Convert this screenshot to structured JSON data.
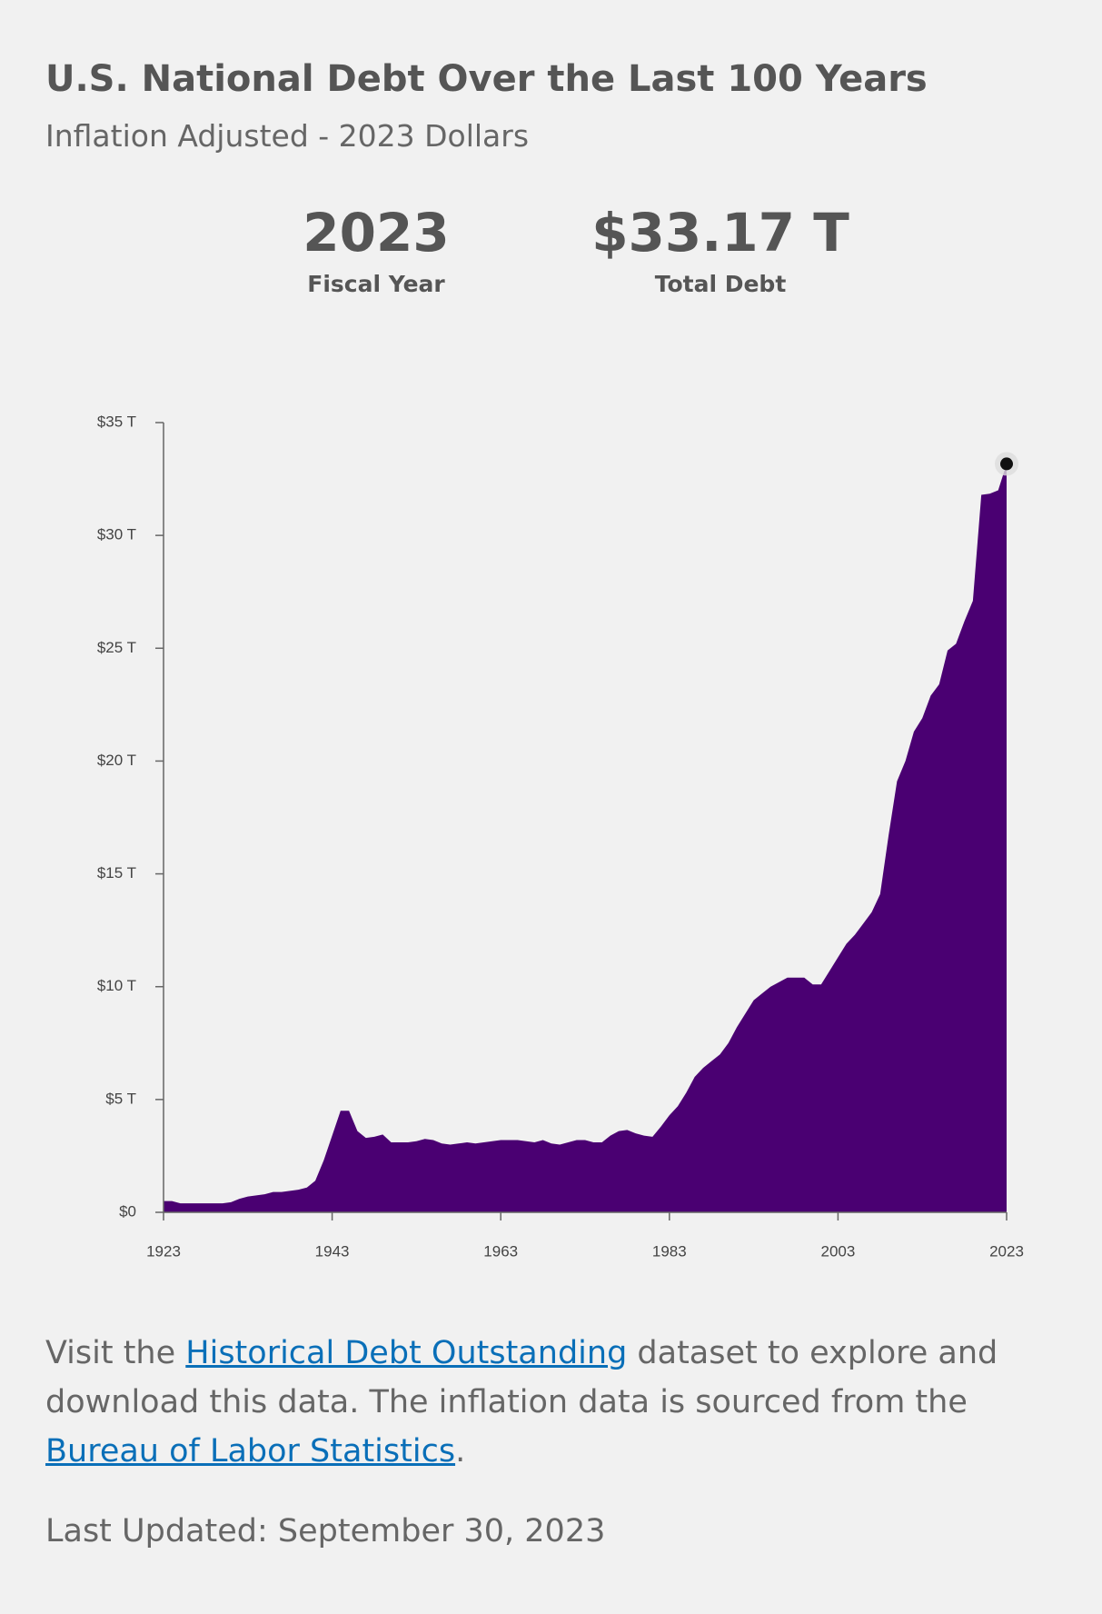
{
  "header": {
    "title": "U.S. National Debt Over the Last 100 Years",
    "subtitle": "Inflation Adjusted - 2023 Dollars"
  },
  "stats": [
    {
      "value": "2023",
      "label": "Fiscal Year"
    },
    {
      "value": "$33.17 T",
      "label": "Total Debt"
    }
  ],
  "chart_data": {
    "type": "area",
    "color": "#4a0072",
    "x": [
      1923,
      1924,
      1925,
      1926,
      1927,
      1928,
      1929,
      1930,
      1931,
      1932,
      1933,
      1934,
      1935,
      1936,
      1937,
      1938,
      1939,
      1940,
      1941,
      1942,
      1943,
      1944,
      1945,
      1946,
      1947,
      1948,
      1949,
      1950,
      1951,
      1952,
      1953,
      1954,
      1955,
      1956,
      1957,
      1958,
      1959,
      1960,
      1961,
      1962,
      1963,
      1964,
      1965,
      1966,
      1967,
      1968,
      1969,
      1970,
      1971,
      1972,
      1973,
      1974,
      1975,
      1976,
      1977,
      1978,
      1979,
      1980,
      1981,
      1982,
      1983,
      1984,
      1985,
      1986,
      1987,
      1988,
      1989,
      1990,
      1991,
      1992,
      1993,
      1994,
      1995,
      1996,
      1997,
      1998,
      1999,
      2000,
      2001,
      2002,
      2003,
      2004,
      2005,
      2006,
      2007,
      2008,
      2009,
      2010,
      2011,
      2012,
      2013,
      2014,
      2015,
      2016,
      2017,
      2018,
      2019,
      2020,
      2021,
      2022,
      2023
    ],
    "values": [
      0.5,
      0.5,
      0.4,
      0.4,
      0.4,
      0.4,
      0.4,
      0.4,
      0.45,
      0.6,
      0.7,
      0.75,
      0.8,
      0.9,
      0.9,
      0.95,
      1.0,
      1.1,
      1.4,
      2.3,
      3.4,
      4.5,
      4.5,
      3.6,
      3.3,
      3.35,
      3.45,
      3.1,
      3.1,
      3.1,
      3.15,
      3.25,
      3.2,
      3.05,
      3.0,
      3.05,
      3.1,
      3.05,
      3.1,
      3.15,
      3.2,
      3.2,
      3.2,
      3.15,
      3.1,
      3.2,
      3.05,
      3.0,
      3.1,
      3.2,
      3.2,
      3.1,
      3.1,
      3.4,
      3.6,
      3.65,
      3.5,
      3.4,
      3.35,
      3.8,
      4.3,
      4.7,
      5.3,
      6.0,
      6.4,
      6.7,
      7.0,
      7.5,
      8.2,
      8.8,
      9.4,
      9.7,
      10.0,
      10.2,
      10.4,
      10.4,
      10.4,
      10.1,
      10.1,
      10.7,
      11.3,
      11.9,
      12.3,
      12.8,
      13.3,
      14.1,
      16.7,
      19.1,
      20.0,
      21.3,
      21.9,
      22.9,
      23.4,
      24.9,
      25.2,
      26.2,
      27.1,
      31.8,
      31.85,
      32.0,
      33.17
    ],
    "xlim": [
      1923,
      2023
    ],
    "xticks": [
      1923,
      1943,
      1963,
      1983,
      2003,
      2023
    ],
    "ylim": [
      0,
      35
    ],
    "yticks": [
      {
        "value": 0,
        "label": "$0"
      },
      {
        "value": 5,
        "label": "$5 T"
      },
      {
        "value": 10,
        "label": "$10 T"
      },
      {
        "value": 15,
        "label": "$15 T"
      },
      {
        "value": 20,
        "label": "$20 T"
      },
      {
        "value": 25,
        "label": "$25 T"
      },
      {
        "value": 30,
        "label": "$30 T"
      },
      {
        "value": 35,
        "label": "$35 T"
      }
    ]
  },
  "footer": {
    "parts": [
      "Visit the ",
      "Historical Debt Outstanding",
      " dataset to explore and download this data. The inflation data is sourced from the ",
      "Bureau of Labor Statistics",
      "."
    ],
    "updated": "Last Updated: September 30, 2023"
  }
}
